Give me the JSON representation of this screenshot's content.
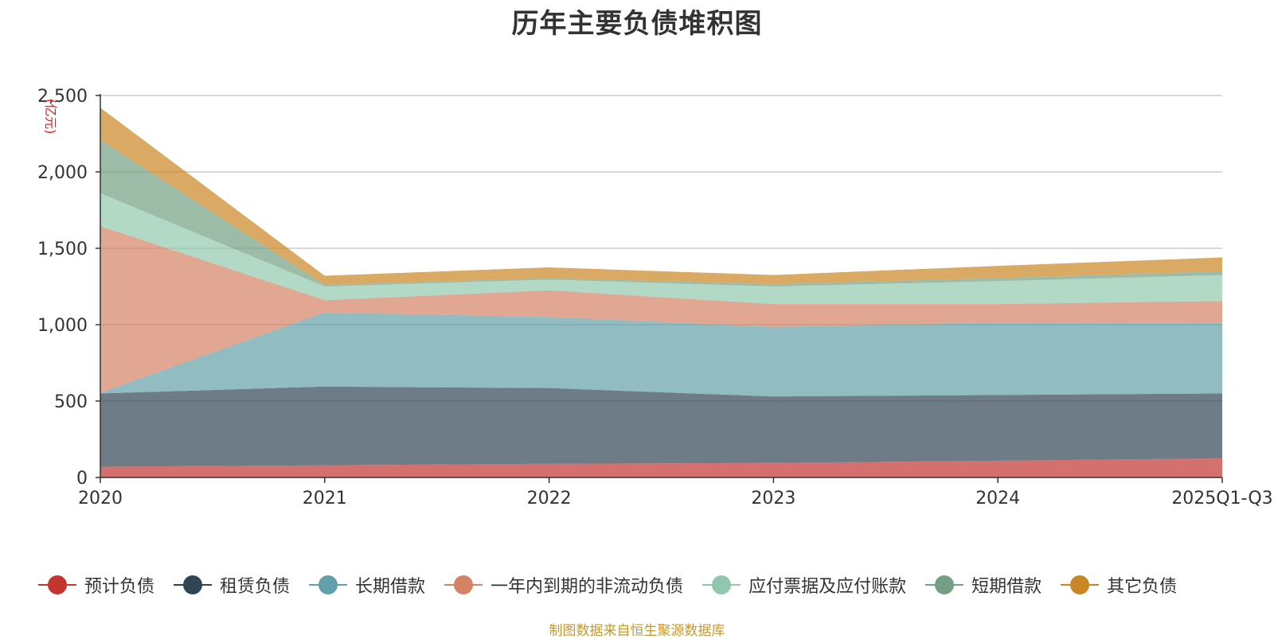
{
  "chart_data": {
    "type": "area",
    "stacked": true,
    "title": "历年主要负债堆积图",
    "ylabel": "(亿元)",
    "xlabel": "",
    "ylim": [
      0,
      2500
    ],
    "yticks": [
      0,
      500,
      1000,
      1500,
      2000,
      2500
    ],
    "ytick_labels": [
      "0",
      "500",
      "1,000",
      "1,500",
      "2,000",
      "2,500"
    ],
    "categories": [
      "2020",
      "2021",
      "2022",
      "2023",
      "2024",
      "2025Q1-Q3"
    ],
    "grid": true,
    "legend_position": "bottom",
    "series": [
      {
        "name": "预计负债",
        "color": "#c23531",
        "values": [
          70,
          80,
          90,
          95,
          110,
          125
        ]
      },
      {
        "name": "租赁负债",
        "color": "#2f4554",
        "values": [
          480,
          515,
          495,
          435,
          430,
          425
        ]
      },
      {
        "name": "长期借款",
        "color": "#61a0a8",
        "values": [
          5,
          485,
          465,
          455,
          475,
          460
        ]
      },
      {
        "name": "一年内到期的非流动负债",
        "color": "#d48265",
        "values": [
          1090,
          80,
          175,
          150,
          120,
          145
        ]
      },
      {
        "name": "应付票据及应付账款",
        "color": "#91c7ae",
        "values": [
          215,
          90,
          70,
          115,
          150,
          170
        ]
      },
      {
        "name": "短期借款",
        "color": "#749f83",
        "values": [
          350,
          10,
          10,
          15,
          20,
          25
        ]
      },
      {
        "name": "其它负债",
        "color": "#ca8622",
        "values": [
          210,
          60,
          70,
          60,
          80,
          90
        ]
      }
    ]
  },
  "source": "制图数据来自恒生聚源数据库"
}
